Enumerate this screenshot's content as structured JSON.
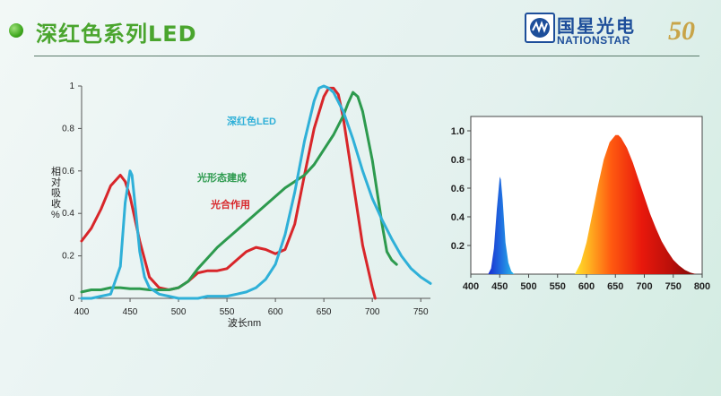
{
  "slide": {
    "title": "深红色系列LED"
  },
  "logo": {
    "name_cn": "国星光电",
    "name_en": "NATIONSTAR",
    "anniversary": "50"
  },
  "chart_data": [
    {
      "type": "line",
      "xlabel": "波长nm",
      "ylabel": "相对吸收%",
      "xlim": [
        400,
        760
      ],
      "ylim": [
        0,
        1
      ],
      "xticks": [
        400,
        450,
        500,
        550,
        600,
        650,
        700,
        750
      ],
      "yticks": [
        0,
        0.2,
        0.4,
        0.6,
        0.8,
        1
      ],
      "ytick_labels": [
        "0",
        "0.2",
        "0.4",
        "0.6",
        "0.8",
        "1"
      ],
      "grid": false,
      "series": [
        {
          "name": "光合作用",
          "color": "#d8262a",
          "x": [
            400,
            410,
            420,
            430,
            440,
            445,
            450,
            460,
            470,
            480,
            490,
            500,
            510,
            520,
            530,
            540,
            550,
            560,
            570,
            580,
            590,
            600,
            610,
            620,
            630,
            640,
            650,
            655,
            660,
            665,
            670,
            680,
            690,
            700,
            703
          ],
          "y": [
            0.27,
            0.33,
            0.42,
            0.53,
            0.58,
            0.55,
            0.48,
            0.27,
            0.1,
            0.05,
            0.04,
            0.05,
            0.08,
            0.12,
            0.13,
            0.13,
            0.14,
            0.18,
            0.22,
            0.24,
            0.23,
            0.21,
            0.23,
            0.35,
            0.58,
            0.8,
            0.95,
            0.99,
            0.99,
            0.96,
            0.85,
            0.55,
            0.25,
            0.05,
            0.0
          ]
        },
        {
          "name": "光形态建成",
          "color": "#2d9a4e",
          "x": [
            400,
            410,
            420,
            430,
            440,
            450,
            460,
            470,
            480,
            490,
            500,
            510,
            520,
            530,
            540,
            550,
            560,
            570,
            580,
            590,
            600,
            610,
            620,
            630,
            640,
            650,
            660,
            670,
            675,
            680,
            685,
            690,
            700,
            710,
            715,
            720,
            725
          ],
          "y": [
            0.03,
            0.04,
            0.04,
            0.05,
            0.05,
            0.045,
            0.045,
            0.04,
            0.04,
            0.04,
            0.05,
            0.08,
            0.14,
            0.19,
            0.24,
            0.28,
            0.32,
            0.36,
            0.4,
            0.44,
            0.48,
            0.52,
            0.55,
            0.58,
            0.63,
            0.7,
            0.77,
            0.86,
            0.92,
            0.97,
            0.95,
            0.88,
            0.65,
            0.35,
            0.22,
            0.18,
            0.16
          ]
        },
        {
          "name": "深红色LED",
          "color": "#2fb0d8",
          "x": [
            400,
            410,
            420,
            430,
            440,
            445,
            450,
            452,
            455,
            460,
            465,
            470,
            480,
            490,
            500,
            510,
            520,
            530,
            540,
            550,
            560,
            570,
            580,
            590,
            600,
            610,
            620,
            630,
            640,
            645,
            650,
            655,
            660,
            670,
            680,
            690,
            700,
            710,
            720,
            730,
            740,
            750,
            760
          ],
          "y": [
            0.0,
            0.0,
            0.01,
            0.02,
            0.15,
            0.45,
            0.6,
            0.58,
            0.45,
            0.22,
            0.1,
            0.05,
            0.02,
            0.01,
            0.0,
            0.0,
            0.0,
            0.01,
            0.01,
            0.01,
            0.02,
            0.03,
            0.05,
            0.09,
            0.16,
            0.3,
            0.5,
            0.74,
            0.93,
            0.99,
            1.0,
            0.99,
            0.97,
            0.88,
            0.75,
            0.6,
            0.47,
            0.37,
            0.28,
            0.2,
            0.14,
            0.1,
            0.07
          ]
        }
      ]
    },
    {
      "type": "area",
      "xlim": [
        400,
        800
      ],
      "ylim": [
        0,
        1.1
      ],
      "xticks": [
        400,
        450,
        500,
        550,
        600,
        650,
        700,
        750,
        800
      ],
      "yticks": [
        0.2,
        0.4,
        0.6,
        0.8,
        1.0
      ],
      "ytick_labels": [
        "0.2",
        "0.4",
        "0.6",
        "0.8",
        "1.0"
      ],
      "grid": false,
      "series": [
        {
          "x": [
            430,
            435,
            440,
            445,
            450,
            452,
            455,
            460,
            465,
            470,
            475
          ],
          "y": [
            0.0,
            0.04,
            0.18,
            0.45,
            0.68,
            0.66,
            0.52,
            0.22,
            0.08,
            0.02,
            0.0
          ]
        },
        {
          "x": [
            580,
            590,
            600,
            610,
            620,
            630,
            640,
            650,
            655,
            660,
            670,
            680,
            690,
            700,
            710,
            720,
            730,
            740,
            750,
            760,
            770,
            780,
            790
          ],
          "y": [
            0.0,
            0.08,
            0.22,
            0.42,
            0.62,
            0.8,
            0.92,
            0.97,
            0.97,
            0.95,
            0.88,
            0.78,
            0.66,
            0.54,
            0.42,
            0.32,
            0.23,
            0.16,
            0.1,
            0.06,
            0.03,
            0.01,
            0.0
          ]
        }
      ]
    }
  ]
}
